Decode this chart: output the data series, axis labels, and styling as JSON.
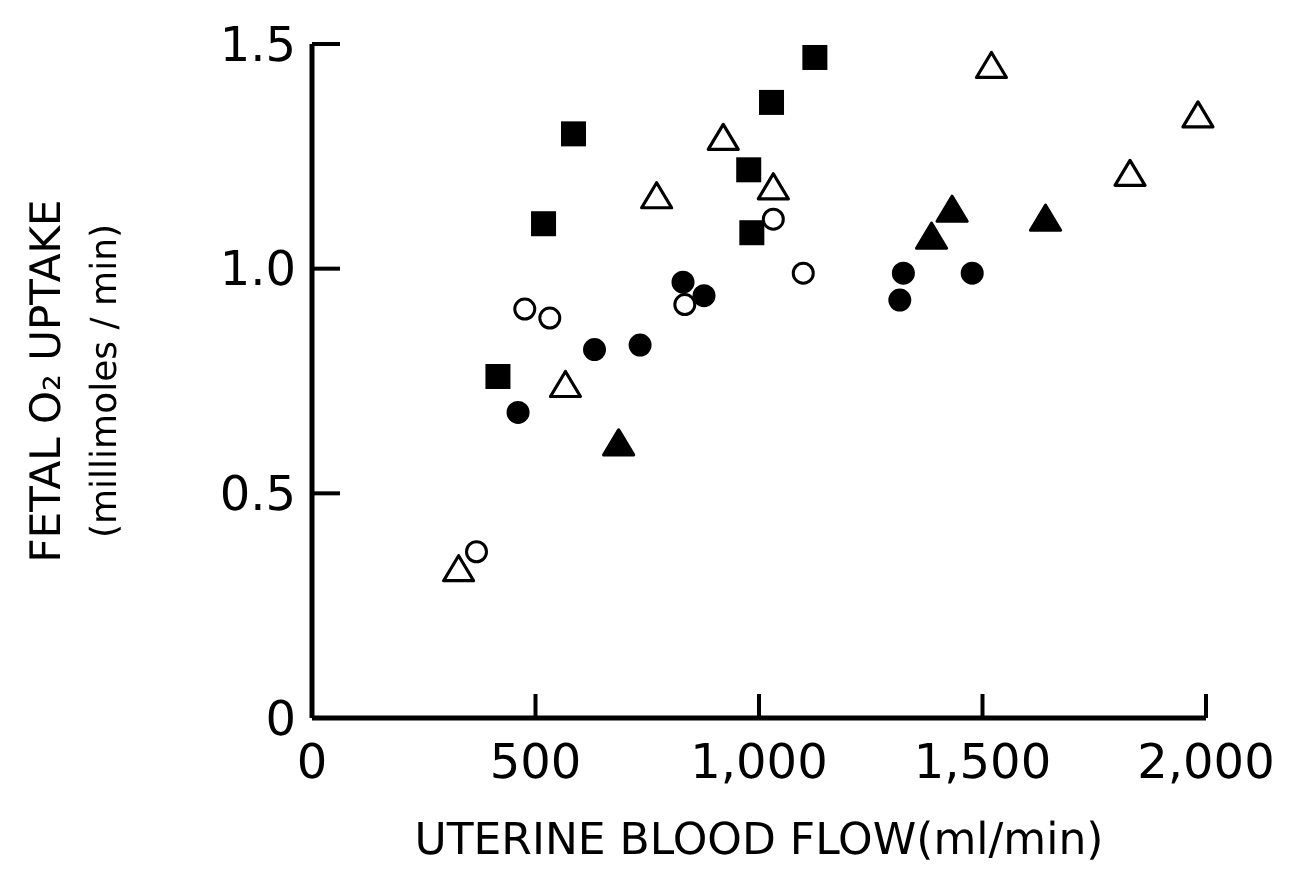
{
  "chart_data": {
    "type": "scatter",
    "xlabel": "UTERINE BLOOD FLOW(ml/min)",
    "ylabel": "FETAL O₂ UPTAKE\n(millimoles / min)",
    "xlim": [
      0,
      2000
    ],
    "xticks": [
      0,
      500,
      {
        "value": 1000,
        "label": "1,000"
      },
      {
        "value": 1500,
        "label": "1,500"
      },
      {
        "value": 2000,
        "label": "2,000"
      }
    ],
    "ylim": [
      0,
      1.5
    ],
    "yticks": [
      0,
      0.5,
      {
        "value": 1,
        "label": "1.0"
      },
      1.5
    ],
    "grid": false,
    "series": [
      {
        "marker": "square",
        "color": "#000000",
        "x": [
          416,
          518,
          585,
          977,
          984,
          1028,
          1125
        ],
        "values": [
          0.76,
          1.1,
          1.3,
          1.22,
          1.08,
          1.37,
          1.47
        ]
      },
      {
        "marker": "circle",
        "color": "#000000",
        "x": [
          461,
          632,
          734,
          830,
          877,
          1323,
          1315,
          1477
        ],
        "values": [
          0.68,
          0.82,
          0.83,
          0.97,
          0.94,
          0.99,
          0.93,
          0.99
        ]
      },
      {
        "marker": "circle",
        "color": "#ffffff",
        "x": [
          368,
          476,
          532,
          834,
          1032,
          1099
        ],
        "values": [
          0.37,
          0.91,
          0.89,
          0.92,
          1.11,
          0.99
        ]
      },
      {
        "marker": "triangle",
        "color": "#ffffff",
        "x": [
          328,
          567,
          771,
          920,
          1032,
          1520,
          1830,
          1982
        ],
        "values": [
          0.33,
          0.74,
          1.16,
          1.29,
          1.18,
          1.45,
          1.21,
          1.34
        ]
      },
      {
        "marker": "triangle",
        "color": "#000000",
        "x": [
          686,
          1386,
          1432,
          1641
        ],
        "values": [
          0.61,
          1.07,
          1.13,
          1.11
        ]
      }
    ]
  }
}
